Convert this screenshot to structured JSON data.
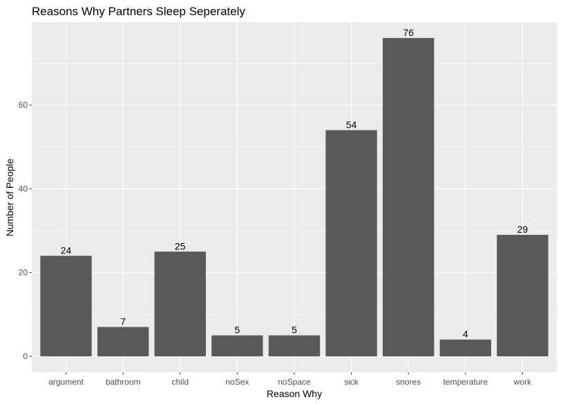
{
  "chart_data": {
    "type": "bar",
    "title": "Reasons Why Partners Sleep Seperately",
    "xlabel": "Reason Why",
    "ylabel": "Number of People",
    "categories": [
      "argument",
      "bathroom",
      "child",
      "noSex",
      "noSpace",
      "sick",
      "snores",
      "temperature",
      "work"
    ],
    "values": [
      24,
      7,
      25,
      5,
      5,
      54,
      76,
      4,
      29
    ],
    "ylim": [
      -3.8,
      79.8
    ],
    "yticks": [
      0,
      20,
      40,
      60
    ],
    "ytick_labels": [
      "0",
      "20",
      "40",
      "60"
    ],
    "grid": true,
    "legend": "none",
    "colors": {
      "bar": "#595959",
      "panel": "#ebebeb",
      "grid_major": "#ffffff",
      "tick": "#333333"
    }
  }
}
